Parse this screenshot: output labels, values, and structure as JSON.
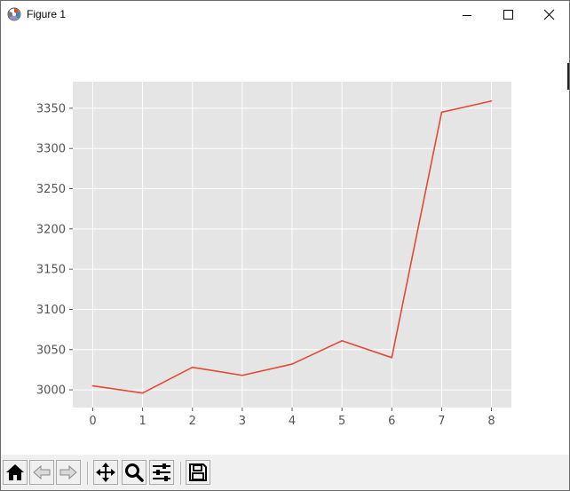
{
  "window": {
    "title": "Figure 1",
    "app_icon": "matplotlib-icon",
    "controls": [
      "minimize-icon",
      "maximize-icon",
      "close-icon"
    ]
  },
  "toolbar": {
    "buttons": [
      "home-icon",
      "back-icon",
      "forward-icon",
      "pan-icon",
      "zoom-icon",
      "configure-subplots-icon",
      "save-icon"
    ]
  },
  "colors": {
    "axes_background": "#e5e5e5",
    "grid": "#ffffff",
    "line": "#e24a33",
    "tick_label": "#555555",
    "toolbar_background": "#f0f0f0"
  },
  "chart_data": {
    "type": "line",
    "title": "",
    "xlabel": "",
    "ylabel": "",
    "grid": true,
    "style": "ggplot",
    "x": [
      0,
      1,
      2,
      3,
      4,
      5,
      6,
      7,
      8
    ],
    "xlim": [
      -0.4,
      8.4
    ],
    "ylim": [
      2978,
      3383
    ],
    "xticks": [
      0,
      1,
      2,
      3,
      4,
      5,
      6,
      7,
      8
    ],
    "xtick_labels": [
      "0",
      "1",
      "2",
      "3",
      "4",
      "5",
      "6",
      "7",
      "8"
    ],
    "yticks": [
      3000,
      3050,
      3100,
      3150,
      3200,
      3250,
      3300,
      3350
    ],
    "ytick_labels": [
      "3000",
      "3050",
      "3100",
      "3150",
      "3200",
      "3250",
      "3300",
      "3350"
    ],
    "series": [
      {
        "values": [
          3005,
          2996,
          3028,
          3018,
          3032,
          3061,
          3040,
          3345,
          3359
        ]
      }
    ]
  }
}
